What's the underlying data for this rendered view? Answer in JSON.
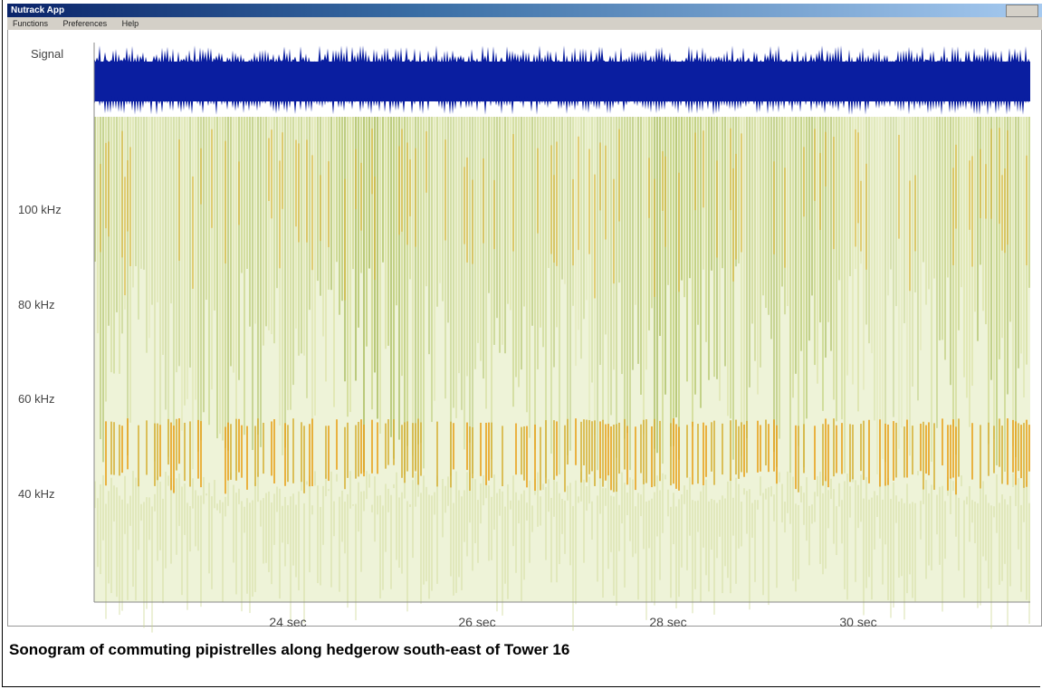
{
  "window": {
    "title": "Nutrack App",
    "menu": [
      "Functions",
      "Preferences",
      "Help"
    ]
  },
  "signal_label": "Signal",
  "frequency_labels": [
    "100 kHz",
    "80 kHz",
    "60 kHz",
    "40 kHz"
  ],
  "time_labels": [
    "24 sec",
    "26 sec",
    "28 sec",
    "30 sec"
  ],
  "caption": "Sonogram of commuting pipistrelles along hedgerow south-east of Tower 16"
}
